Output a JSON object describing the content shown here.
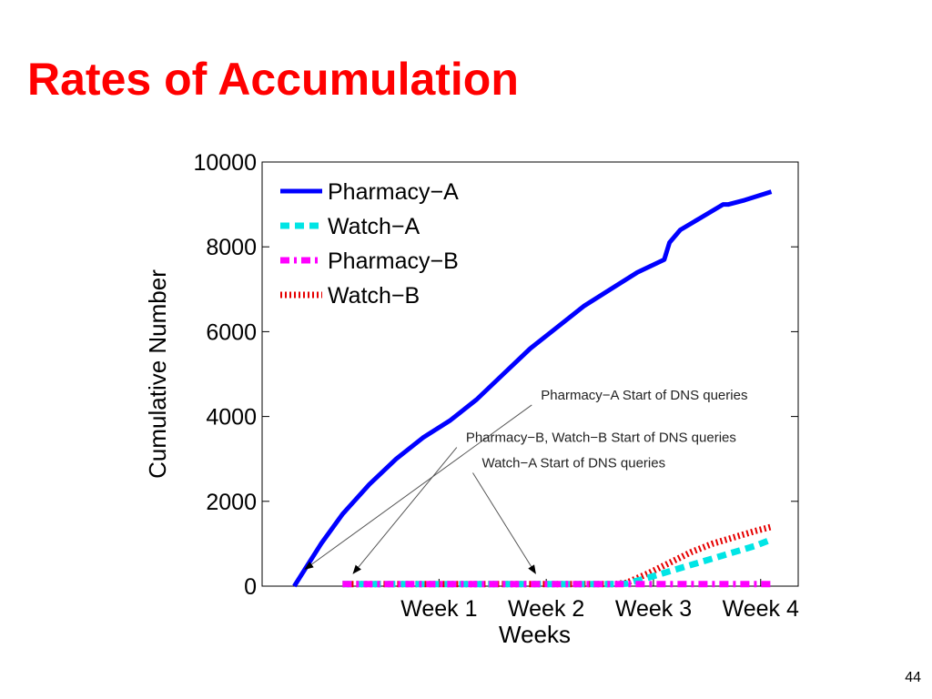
{
  "slide": {
    "title": "Rates of Accumulation",
    "page_number": "44"
  },
  "colors": {
    "title": "#ff0000",
    "pharmacy_a": "#0000ff",
    "watch_a": "#00e5e5",
    "pharmacy_b": "#ff00ff",
    "watch_b": "#e60000"
  },
  "chart_data": {
    "type": "line",
    "title": "",
    "xlabel": "Weeks",
    "ylabel": "Cumulative Number",
    "xlim": [
      0,
      5
    ],
    "ylim": [
      0,
      10000
    ],
    "yticks": [
      0,
      2000,
      4000,
      6000,
      8000,
      10000
    ],
    "xtick_positions": [
      1.65,
      2.65,
      3.65,
      4.65
    ],
    "xtick_labels": [
      "Week 1",
      "Week 2",
      "Week 3",
      "Week 4"
    ],
    "grid": false,
    "legend": "top-left",
    "series": [
      {
        "name": "Pharmacy−A",
        "style": "solid",
        "x": [
          0.3,
          0.4,
          0.55,
          0.75,
          1.0,
          1.25,
          1.5,
          1.75,
          2.0,
          2.25,
          2.5,
          2.75,
          3.0,
          3.25,
          3.5,
          3.75,
          3.8,
          3.9,
          4.1,
          4.3,
          4.35,
          4.5,
          4.75
        ],
        "y": [
          0,
          400,
          1000,
          1700,
          2400,
          3000,
          3500,
          3900,
          4400,
          5000,
          5600,
          6100,
          6600,
          7000,
          7400,
          7700,
          8100,
          8400,
          8700,
          9000,
          9000,
          9100,
          9300
        ]
      },
      {
        "name": "Watch−A",
        "style": "dashed",
        "x": [
          0.75,
          3.3,
          3.4,
          3.6,
          3.8,
          4.0,
          4.2,
          4.4,
          4.6,
          4.75
        ],
        "y": [
          50,
          50,
          60,
          200,
          350,
          500,
          650,
          800,
          950,
          1100
        ]
      },
      {
        "name": "Pharmacy−B",
        "style": "dashdot",
        "x": [
          0.75,
          4.75
        ],
        "y": [
          50,
          50
        ]
      },
      {
        "name": "Watch−B",
        "style": "dotted",
        "x": [
          0.75,
          3.3,
          3.4,
          3.6,
          3.8,
          4.0,
          4.2,
          4.4,
          4.6,
          4.75
        ],
        "y": [
          50,
          50,
          80,
          300,
          550,
          800,
          1000,
          1150,
          1300,
          1400
        ]
      }
    ],
    "annotations": [
      {
        "text": "Pharmacy−A Start of DNS queries",
        "text_x": 2.6,
        "text_y": 4400,
        "point_x": 0.4,
        "point_y": 400
      },
      {
        "text": "Pharmacy−B, Watch−B Start of DNS queries",
        "text_x": 1.9,
        "text_y": 3400,
        "point_x": 0.85,
        "point_y": 300
      },
      {
        "text": "Watch−A Start of DNS queries",
        "text_x": 2.05,
        "text_y": 2800,
        "point_x": 2.55,
        "point_y": 300
      }
    ]
  }
}
